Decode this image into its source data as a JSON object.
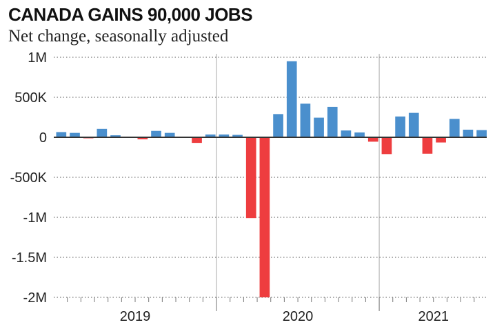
{
  "header": {
    "title": "CANADA GAINS 90,000 JOBS",
    "subtitle": "Net change, seasonally adjusted"
  },
  "colors": {
    "positive": "#4a8fcd",
    "negative": "#ee3d3f",
    "zero_line": "#333333",
    "grid": "#555555",
    "year_divider": "#aaaaaa"
  },
  "chart_data": {
    "type": "bar",
    "title": "CANADA GAINS 90,000 JOBS",
    "subtitle": "Net change, seasonally adjusted",
    "xlabel": "",
    "ylabel": "",
    "ylim": [
      -2000000,
      1000000
    ],
    "yticks": [
      1000000,
      500000,
      0,
      -500000,
      -1000000,
      -1500000,
      -2000000
    ],
    "ytick_labels": [
      "1M",
      "500K",
      "0",
      "-500K",
      "-1M",
      "-1.5M",
      "-2M"
    ],
    "grid": "horizontal dotted",
    "legend": null,
    "year_labels": [
      "2019",
      "2020",
      "2021"
    ],
    "categories": [
      "2019-01",
      "2019-02",
      "2019-03",
      "2019-04",
      "2019-05",
      "2019-06",
      "2019-07",
      "2019-08",
      "2019-09",
      "2019-10",
      "2019-11",
      "2019-12",
      "2020-01",
      "2020-02",
      "2020-03",
      "2020-04",
      "2020-05",
      "2020-06",
      "2020-07",
      "2020-08",
      "2020-09",
      "2020-10",
      "2020-11",
      "2020-12",
      "2021-01",
      "2021-02",
      "2021-03",
      "2021-04",
      "2021-05",
      "2021-06",
      "2021-07",
      "2021-08"
    ],
    "values": [
      65000,
      55000,
      -5000,
      105000,
      25000,
      0,
      -25000,
      80000,
      55000,
      0,
      -70000,
      35000,
      35000,
      30000,
      -1010000,
      -2000000,
      290000,
      950000,
      420000,
      245000,
      380000,
      85000,
      60000,
      -55000,
      -210000,
      260000,
      305000,
      -205000,
      -65000,
      230000,
      95000,
      90000
    ]
  }
}
